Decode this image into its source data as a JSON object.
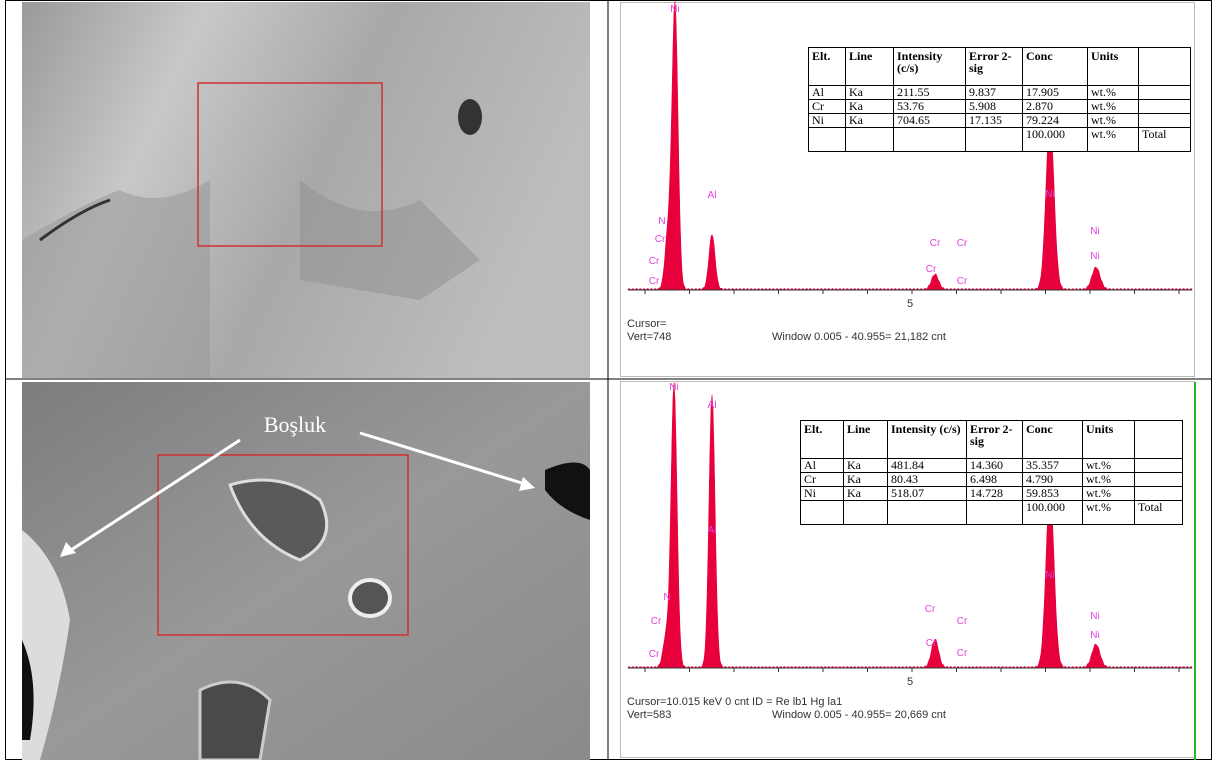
{
  "annotation": "Boşluk",
  "panels": [
    {
      "table": {
        "header": [
          "Elt.",
          "Line",
          "Intensity (c/s)",
          "Error 2-sig",
          "Conc",
          "Units"
        ],
        "rows": [
          [
            "Al",
            "Ka",
            "211.55",
            "9.837",
            "17.905",
            "wt.%"
          ],
          [
            "Cr",
            "Ka",
            "53.76",
            "5.908",
            "2.870",
            "wt.%"
          ],
          [
            "Ni",
            "Ka",
            "704.65",
            "17.135",
            "79.224",
            "wt.%"
          ]
        ],
        "total": {
          "conc": "100.000",
          "units": "wt.%",
          "label": "Total"
        }
      },
      "spectrum": {
        "peak_labels": [
          "Ni",
          "Al",
          "N",
          "Cr",
          "Cr",
          "Cr",
          "Cr",
          "Cr",
          "Cr",
          "Cr",
          "Ni",
          "Ni",
          "Ni"
        ],
        "axis_tick": "5",
        "cursor": "Cursor=",
        "vert": "Vert=748",
        "window": "Window 0.005 - 40.955=  21,182 cnt"
      }
    },
    {
      "table": {
        "header": [
          "Elt.",
          "Line",
          "Intensity (c/s)",
          "Error 2-sig",
          "Conc",
          "Units"
        ],
        "rows": [
          [
            "Al",
            "Ka",
            "481.84",
            "14.360",
            "35.357",
            "wt.%"
          ],
          [
            "Cr",
            "Ka",
            "80.43",
            "6.498",
            "4.790",
            "wt.%"
          ],
          [
            "Ni",
            "Ka",
            "518.07",
            "14.728",
            "59.853",
            "wt.%"
          ]
        ],
        "total": {
          "conc": "100.000",
          "units": "wt.%",
          "label": "Total"
        }
      },
      "spectrum": {
        "peak_labels": [
          "Ni",
          "Al",
          "Al",
          "N",
          "Cr",
          "Cr",
          "Cr",
          "Cr",
          "Cr",
          "Cr",
          "Ni",
          "Ni",
          "Ni"
        ],
        "axis_tick": "5",
        "cursor": "Cursor=10.015 keV   0 cnt  ID = Re lb1 Hg la1",
        "vert": "Vert=583",
        "window": "Window 0.005 - 40.955=  20,669 cnt"
      }
    }
  ]
}
